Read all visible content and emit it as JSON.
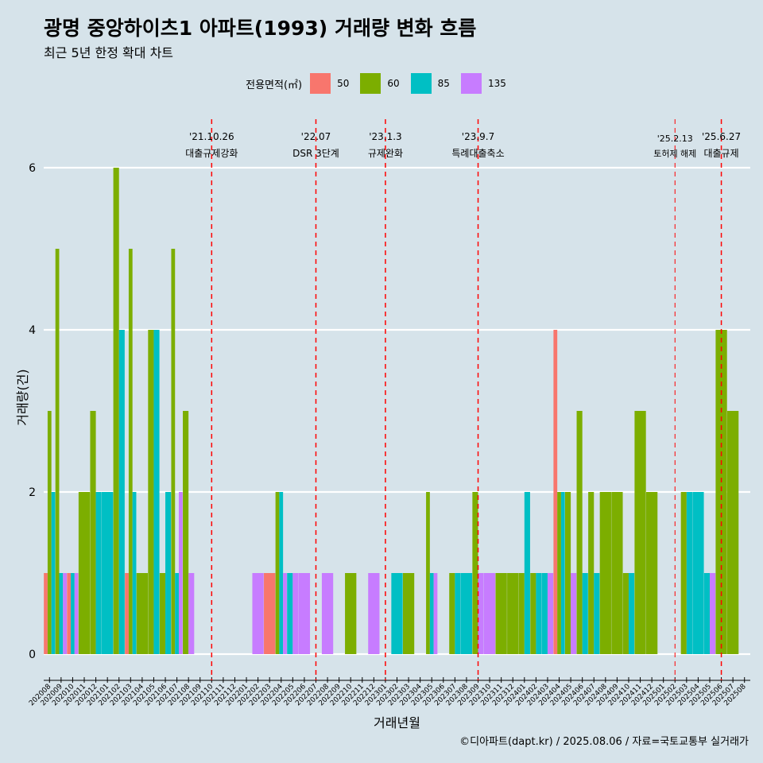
{
  "chart_data": {
    "type": "bar",
    "title": "광명 중앙하이츠1 아파트(1993) 거래량 변화 흐름",
    "subtitle": "최근 5년 한정 확대 차트",
    "xlabel": "거래년월",
    "ylabel": "거래량(건)",
    "ylim": [
      0,
      6.3
    ],
    "yticks": [
      0,
      2,
      4,
      6
    ],
    "grid": "horizontal-major",
    "legend": {
      "title": "전용면적(㎡)",
      "position": "top-center"
    },
    "series": [
      {
        "name": "50",
        "color": "#f8766d"
      },
      {
        "name": "60",
        "color": "#7cae00"
      },
      {
        "name": "85",
        "color": "#00bfc4"
      },
      {
        "name": "135",
        "color": "#c77cff"
      }
    ],
    "categories": [
      "202008",
      "202009",
      "202010",
      "202011",
      "202012",
      "202101",
      "202102",
      "202103",
      "202104",
      "202105",
      "202106",
      "202107",
      "202108",
      "202109",
      "202110",
      "202111",
      "202112",
      "202201",
      "202202",
      "202203",
      "202204",
      "202205",
      "202206",
      "202207",
      "202208",
      "202209",
      "202210",
      "202211",
      "202212",
      "202301",
      "202302",
      "202303",
      "202304",
      "202305",
      "202306",
      "202307",
      "202308",
      "202309",
      "202310",
      "202311",
      "202312",
      "202401",
      "202402",
      "202403",
      "202404",
      "202405",
      "202406",
      "202407",
      "202408",
      "202409",
      "202410",
      "202411",
      "202412",
      "202501",
      "202502",
      "202503",
      "202504",
      "202505",
      "202506",
      "202507",
      "202508"
    ],
    "values": {
      "202008": {
        "50": 1,
        "60": 3,
        "85": 2
      },
      "202009": {
        "60": 5,
        "85": 1,
        "135": 1
      },
      "202010": {
        "50": 1,
        "85": 1,
        "135": 1
      },
      "202011": {
        "60": 2
      },
      "202012": {
        "60": 3,
        "85": 2
      },
      "202101": {
        "85": 2
      },
      "202102": {
        "60": 6,
        "85": 4
      },
      "202103": {
        "50": 1,
        "60": 5,
        "85": 2
      },
      "202104": {
        "60": 1
      },
      "202105": {
        "60": 4,
        "85": 4
      },
      "202106": {
        "60": 1,
        "85": 2
      },
      "202107": {
        "60": 5,
        "85": 1,
        "135": 2
      },
      "202108": {
        "60": 3,
        "135": 1
      },
      "202202": {
        "135": 1
      },
      "202203": {
        "50": 1
      },
      "202204": {
        "60": 2,
        "85": 2,
        "135": 1
      },
      "202205": {
        "85": 1,
        "135": 1
      },
      "202206": {
        "135": 1
      },
      "202208": {
        "135": 1
      },
      "202210": {
        "60": 1
      },
      "202212": {
        "135": 1
      },
      "202302": {
        "85": 1
      },
      "202303": {
        "60": 1
      },
      "202305": {
        "60": 2,
        "85": 1,
        "135": 1
      },
      "202307": {
        "60": 1,
        "85": 1
      },
      "202308": {
        "85": 1
      },
      "202309": {
        "60": 2,
        "135": 1
      },
      "202310": {
        "135": 1
      },
      "202311": {
        "60": 1
      },
      "202312": {
        "60": 1
      },
      "202401": {
        "60": 1,
        "85": 2
      },
      "202402": {
        "60": 1,
        "85": 1
      },
      "202403": {
        "85": 1,
        "135": 1
      },
      "202404": {
        "50": 4,
        "60": 2,
        "85": 2
      },
      "202405": {
        "135": 1,
        "60": 2
      },
      "202406": {
        "60": 3,
        "85": 1
      },
      "202407": {
        "60": 2,
        "85": 1
      },
      "202408": {
        "60": 2
      },
      "202409": {
        "60": 2
      },
      "202410": {
        "60": 1,
        "85": 1
      },
      "202411": {
        "60": 3
      },
      "202412": {
        "60": 2
      },
      "202503": {
        "60": 2,
        "85": 2
      },
      "202504": {
        "85": 2
      },
      "202505": {
        "85": 1,
        "135": 1
      },
      "202506": {
        "60": 4
      },
      "202507": {
        "60": 3
      }
    },
    "events": [
      {
        "date": "'21.10.26",
        "label": "대출규제강화",
        "at": "202110"
      },
      {
        "date": "'22.07",
        "label": "DSR 3단계",
        "at": "202207"
      },
      {
        "date": "'23.1.3",
        "label": "규제완화",
        "at": "202301"
      },
      {
        "date": "'23.9.7",
        "label": "특례대출축소",
        "at": "202309"
      },
      {
        "date": "'25.2.13",
        "label": "토허제 해제",
        "at": "202502",
        "small": true
      },
      {
        "date": "'25.6.27",
        "label": "대출규제",
        "at": "202506"
      }
    ],
    "caption": "©디아파트(dapt.kr) / 2025.08.06 / 자료=국토교통부 실거래가"
  }
}
